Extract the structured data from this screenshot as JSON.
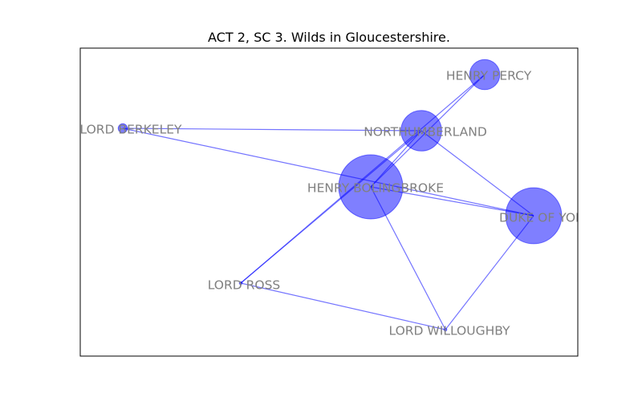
{
  "title": "ACT 2, SC 3. Wilds in Gloucestershire.",
  "colors": {
    "node_fill": "#0000ff",
    "edge_stroke": "#0000ff",
    "label_text": "#808080",
    "frame": "#000000"
  },
  "graph": {
    "nodes": [
      {
        "id": "henry_percy",
        "label": "HENRY PERCY",
        "weight": 2.2
      },
      {
        "id": "northumberland",
        "label": "NORTHUMBERLAND",
        "weight": 4.0
      },
      {
        "id": "lord_berkeley",
        "label": "LORD BERKELEY",
        "weight": 0.2
      },
      {
        "id": "henry_bolingbroke",
        "label": "HENRY BOLINGBROKE",
        "weight": 10.0
      },
      {
        "id": "duke_of_york",
        "label": "DUKE OF YORK",
        "weight": 7.6
      },
      {
        "id": "lord_ross",
        "label": "LORD ROSS",
        "weight": 0.02
      },
      {
        "id": "lord_willoughby",
        "label": "LORD WILLOUGHBY",
        "weight": 0.02
      }
    ],
    "edges": [
      [
        "lord_berkeley",
        "northumberland"
      ],
      [
        "lord_berkeley",
        "duke_of_york"
      ],
      [
        "henry_percy",
        "henry_bolingbroke"
      ],
      [
        "henry_percy",
        "lord_ross"
      ],
      [
        "northumberland",
        "henry_bolingbroke"
      ],
      [
        "northumberland",
        "lord_ross"
      ],
      [
        "northumberland",
        "duke_of_york"
      ],
      [
        "henry_bolingbroke",
        "duke_of_york"
      ],
      [
        "henry_bolingbroke",
        "lord_willoughby"
      ],
      [
        "lord_ross",
        "lord_willoughby"
      ],
      [
        "duke_of_york",
        "lord_willoughby"
      ]
    ]
  }
}
